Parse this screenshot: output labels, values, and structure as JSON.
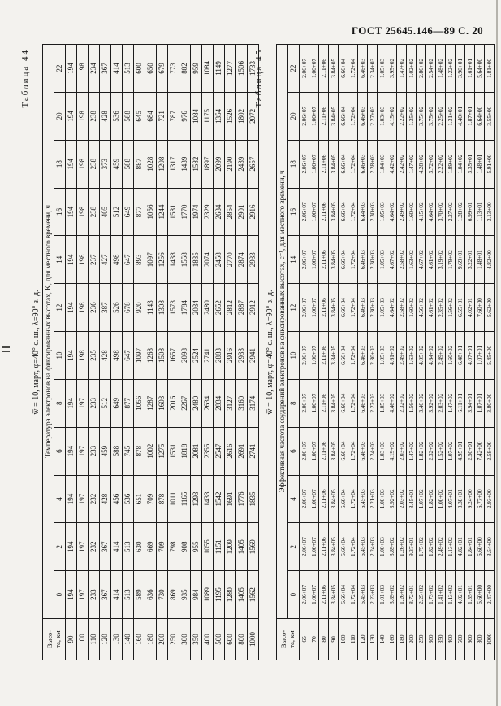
{
  "page_header": "ГОСТ 25645.146—89 С. 20",
  "tables": [
    {
      "label": "Таблица 44",
      "subtitle": "w̅ = 10, март, φ=40° с. ш., λ=90° з. д.",
      "span_header": "Температура электронов на фиксированных высотах, K, для местного времени, ч",
      "corner": {
        "line1": "Высо-",
        "line2": "та, км"
      },
      "time_headers": [
        "0",
        "2",
        "4",
        "6",
        "8",
        "10",
        "12",
        "14",
        "16",
        "18",
        "20",
        "22"
      ],
      "rows": [
        {
          "height": "90",
          "values": [
            "194",
            "194",
            "194",
            "194",
            "194",
            "194",
            "194",
            "194",
            "194",
            "194",
            "194",
            "194"
          ]
        },
        {
          "height": "100",
          "values": [
            "197",
            "197",
            "197",
            "197",
            "197",
            "198",
            "198",
            "198",
            "198",
            "198",
            "198",
            "198"
          ]
        },
        {
          "height": "110",
          "values": [
            "233",
            "232",
            "232",
            "233",
            "233",
            "235",
            "236",
            "237",
            "238",
            "238",
            "238",
            "234"
          ]
        },
        {
          "height": "120",
          "values": [
            "367",
            "367",
            "428",
            "459",
            "512",
            "428",
            "387",
            "427",
            "405",
            "373",
            "428",
            "367"
          ]
        },
        {
          "height": "130",
          "values": [
            "414",
            "414",
            "456",
            "588",
            "649",
            "498",
            "526",
            "498",
            "512",
            "459",
            "536",
            "414"
          ]
        },
        {
          "height": "140",
          "values": [
            "513",
            "513",
            "536",
            "745",
            "877",
            "647",
            "678",
            "647",
            "649",
            "588",
            "588",
            "513"
          ]
        },
        {
          "height": "160",
          "values": [
            "589",
            "630",
            "651",
            "878",
            "1056",
            "1097",
            "920",
            "893",
            "877",
            "887",
            "645",
            "600"
          ]
        },
        {
          "height": "180",
          "values": [
            "636",
            "669",
            "709",
            "1002",
            "1287",
            "1268",
            "1143",
            "1097",
            "1056",
            "1028",
            "684",
            "650"
          ]
        },
        {
          "height": "200",
          "values": [
            "730",
            "709",
            "878",
            "1275",
            "1603",
            "1508",
            "1308",
            "1256",
            "1244",
            "1208",
            "721",
            "679"
          ]
        },
        {
          "height": "250",
          "values": [
            "869",
            "798",
            "1011",
            "1531",
            "2016",
            "1657",
            "1573",
            "1438",
            "1581",
            "1317",
            "787",
            "773"
          ]
        },
        {
          "height": "300",
          "values": [
            "935",
            "908",
            "1165",
            "1818",
            "2267",
            "2098",
            "1784",
            "1558",
            "1770",
            "1439",
            "976",
            "882"
          ]
        },
        {
          "height": "350",
          "values": [
            "984",
            "955",
            "1293",
            "2081",
            "2480",
            "2524",
            "2034",
            "1835",
            "1974",
            "1582",
            "1084",
            "959"
          ]
        },
        {
          "height": "400",
          "values": [
            "1089",
            "1055",
            "1433",
            "2355",
            "2634",
            "2741",
            "2480",
            "2074",
            "2329",
            "1897",
            "1175",
            "1084"
          ]
        },
        {
          "height": "500",
          "values": [
            "1195",
            "1151",
            "1542",
            "2547",
            "2834",
            "2883",
            "2652",
            "2458",
            "2634",
            "2099",
            "1354",
            "1149"
          ]
        },
        {
          "height": "600",
          "values": [
            "1280",
            "1209",
            "1691",
            "2616",
            "3127",
            "2916",
            "2812",
            "2770",
            "2854",
            "2190",
            "1526",
            "1277"
          ]
        },
        {
          "height": "800",
          "values": [
            "1405",
            "1405",
            "1776",
            "2691",
            "3160",
            "2933",
            "2887",
            "2874",
            "2901",
            "2439",
            "1802",
            "1506"
          ]
        },
        {
          "height": "1000",
          "values": [
            "1562",
            "1569",
            "1835",
            "2741",
            "3174",
            "2941",
            "2912",
            "2933",
            "2916",
            "2657",
            "2072",
            "1733"
          ]
        }
      ]
    },
    {
      "label": "Таблица 45",
      "subtitle": "w̅ = 10, март, φ=40° с. ш., λ=90° з. д.",
      "span_header": "Эффективная частота соударений электронов на фиксированных высотах, с⁻¹, для местного времени, ч",
      "corner": {
        "line1": "Высо-",
        "line2": "та, км"
      },
      "time_headers": [
        "0",
        "2",
        "4",
        "6",
        "8",
        "10",
        "12",
        "14",
        "16",
        "18",
        "20",
        "22"
      ],
      "rows": [
        {
          "height": "65",
          "values": [
            "2.06+07",
            "2.06+07",
            "2.06+07",
            "2.06+07",
            "2.06+07",
            "2.06+07",
            "2.06+07",
            "2.06+07",
            "2.06+07",
            "2.06+07",
            "2.06+07",
            "2.06+07"
          ]
        },
        {
          "height": "70",
          "values": [
            "1.00+07",
            "1.00+07",
            "1.00+07",
            "1.00+07",
            "1.00+07",
            "1.00+07",
            "1.00+07",
            "1.00+07",
            "1.00+07",
            "1.00+07",
            "1.00+07",
            "1.00+07"
          ]
        },
        {
          "height": "80",
          "values": [
            "2.11+06",
            "2.11+06",
            "2.11+06",
            "2.11+06",
            "2.11+06",
            "2.11+06",
            "2.11+06",
            "2.11+06",
            "2.11+06",
            "2.11+06",
            "2.11+06",
            "2.11+06"
          ]
        },
        {
          "height": "90",
          "values": [
            "3.84+05",
            "3.84+05",
            "3.84+05",
            "3.84+05",
            "3.84+05",
            "3.84+05",
            "3.84+05",
            "3.84+05",
            "3.84+05",
            "3.84+05",
            "3.84+05",
            "3.84+05"
          ]
        },
        {
          "height": "100",
          "values": [
            "6.66+04",
            "6.66+04",
            "6.66+04",
            "6.66+04",
            "6.66+04",
            "6.66+04",
            "6.66+04",
            "6.66+04",
            "6.66+04",
            "6.66+04",
            "6.66+04",
            "6.66+04"
          ]
        },
        {
          "height": "110",
          "values": [
            "1.72+04",
            "1.72+04",
            "1.72+04",
            "1.72+04",
            "1.72+04",
            "1.72+04",
            "1.72+04",
            "1.72+04",
            "1.72+04",
            "1.72+04",
            "1.72+04",
            "1.72+04"
          ]
        },
        {
          "height": "120",
          "values": [
            "6.45+03",
            "6.45+03",
            "6.45+03",
            "6.46+03",
            "6.46+03",
            "6.46+03",
            "6.46+03",
            "6.46+03",
            "6.44+03",
            "6.46+03",
            "6.46+03",
            "6.46+03"
          ]
        },
        {
          "height": "130",
          "values": [
            "2.23+03",
            "2.24+03",
            "2.21+03",
            "2.24+03",
            "2.27+03",
            "2.30+03",
            "2.30+03",
            "2.30+03",
            "2.30+03",
            "2.28+03",
            "2.27+03",
            "2.34+03"
          ]
        },
        {
          "height": "140",
          "values": [
            "1.01+03",
            "1.00+03",
            "1.00+03",
            "1.03+03",
            "1.05+03",
            "1.05+03",
            "1.05+03",
            "1.05+03",
            "1.05+03",
            "1.04+03",
            "1.03+03",
            "1.05+03"
          ]
        },
        {
          "height": "160",
          "values": [
            "3.89+02",
            "3.89+02",
            "3.92+02",
            "4.19+02",
            "4.46+02",
            "4.61+02",
            "4.64+02",
            "4.67+02",
            "4.64+02",
            "4.42+02",
            "4.15+02",
            "3.95+02"
          ]
        },
        {
          "height": "180",
          "values": [
            "1.26+02",
            "1.26+02",
            "2.03+02",
            "2.03+02",
            "2.32+02",
            "2.49+02",
            "2.58+02",
            "2.58+02",
            "2.49+02",
            "2.42+02",
            "2.22+02",
            "1.47+02"
          ]
        },
        {
          "height": "200",
          "values": [
            "8.72+01",
            "9.37+01",
            "8.45+01",
            "1.47+02",
            "1.56+02",
            "1.63+02",
            "1.60+02",
            "1.63+02",
            "1.60+02",
            "1.47+02",
            "1.35+02",
            "1.02+02"
          ]
        },
        {
          "height": "250",
          "values": [
            "2.25+02",
            "1.75+02",
            "1.07+02",
            "1.82+02",
            "3.46+02",
            "4.05+02",
            "4.56+02",
            "4.67+02",
            "4.15+02",
            "4.28+02",
            "3.75+02",
            "2.86+02"
          ]
        },
        {
          "height": "300",
          "values": [
            "1.73+02",
            "1.82+02",
            "1.82+02",
            "2.32+02",
            "3.92+02",
            "4.64+02",
            "4.61+02",
            "4.61+02",
            "4.64+02",
            "3.72+02",
            "3.75+02",
            "2.54+02"
          ]
        },
        {
          "height": "350",
          "values": [
            "1.41+02",
            "2.49+02",
            "1.00+02",
            "1.52+02",
            "2.03+02",
            "2.49+02",
            "2.35+02",
            "3.19+02",
            "3.70+02",
            "2.22+02",
            "2.25+02",
            "1.48+02"
          ]
        },
        {
          "height": "400",
          "values": [
            "1.13+02",
            "1.13+02",
            "4.07+01",
            "1.07+02",
            "1.47+02",
            "1.60+02",
            "1.56+02",
            "1.79+02",
            "2.27+02",
            "1.89+02",
            "1.31+02",
            "1.22+02"
          ]
        },
        {
          "height": "500",
          "values": [
            "4.02+01",
            "4.82+01",
            "3.38+01",
            "4.95+01",
            "6.11+01",
            "6.48+01",
            "6.55+01",
            "9.69+01",
            "1.28+02",
            "1.04+02",
            "4.40+01",
            "3.90+01"
          ]
        },
        {
          "height": "600",
          "values": [
            "1.55+01",
            "1.84+01",
            "9.24+00",
            "2.50+01",
            "3.94+01",
            "4.07+01",
            "4.02+01",
            "3.22+01",
            "6.99+01",
            "3.35+01",
            "1.87+01",
            "1.61+01"
          ]
        },
        {
          "height": "800",
          "values": [
            "6.60+00",
            "6.60+00",
            "6.77+00",
            "7.42+00",
            "1.07+01",
            "1.07+01",
            "7.60+00",
            "1.48+01",
            "1.13+01",
            "1.48+01",
            "6.64+00",
            "5.64+00"
          ]
        },
        {
          "height": "1000",
          "values": [
            "2.47+00",
            "3.54+00",
            "2.93+00",
            "2.58+00",
            "3.80+00",
            "5.45+00",
            "5.62+00",
            "4.82+00",
            "3.13+00",
            "5.91+00",
            "3.55+00",
            "1.81+00"
          ]
        }
      ]
    }
  ]
}
